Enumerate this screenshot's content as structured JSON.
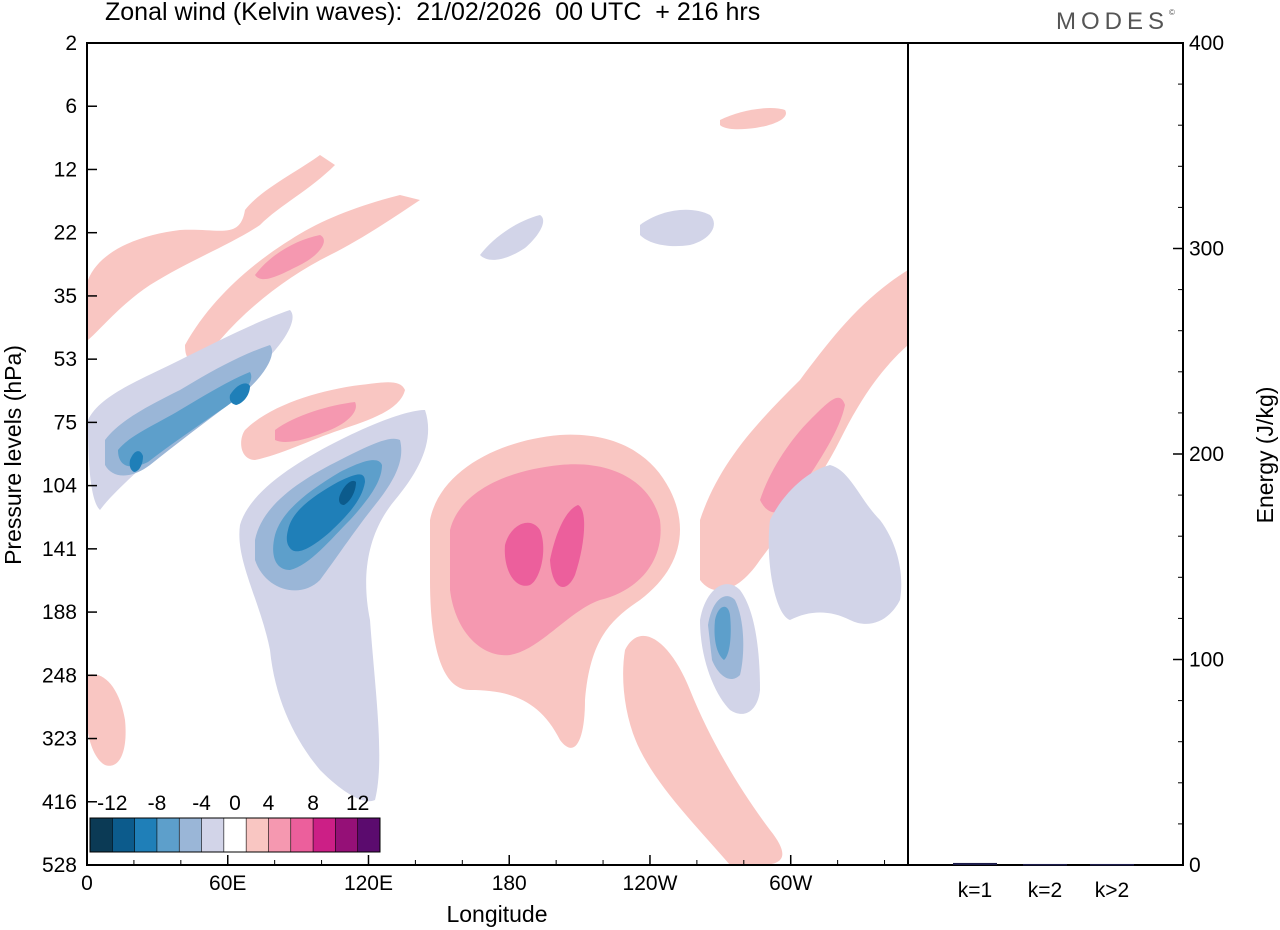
{
  "title": "Zonal wind (Kelvin waves):  21/02/2026  00 UTC  + 216 hrs",
  "brand": "MODES",
  "brand_mark": "©",
  "chart_data": [
    {
      "type": "heatmap",
      "title": "Zonal wind (Kelvin waves):  21/02/2026  00 UTC  + 216 hrs",
      "xlabel": "Longitude",
      "ylabel": "Pressure levels (hPa)",
      "x_ticks": [
        {
          "label": "0",
          "lon": 0
        },
        {
          "label": "60E",
          "lon": 60
        },
        {
          "label": "120E",
          "lon": 120
        },
        {
          "label": "180",
          "lon": 180
        },
        {
          "label": "120W",
          "lon": 240
        },
        {
          "label": "60W",
          "lon": 300
        }
      ],
      "x_range": [
        0,
        350
      ],
      "y_ticks": [
        "2",
        "6",
        "12",
        "22",
        "35",
        "53",
        "75",
        "104",
        "141",
        "188",
        "248",
        "323",
        "416",
        "528"
      ],
      "y_scale": "model levels (top 2 hPa, bottom 528 hPa)",
      "colorbar": {
        "labels": [
          "-12",
          "-8",
          "-4",
          "0",
          "4",
          "8",
          "12"
        ],
        "bounds": [
          -14,
          -12,
          -10,
          -8,
          -6,
          -4,
          -2,
          2,
          4,
          6,
          8,
          10,
          12,
          14
        ],
        "colors": [
          "#0b3a55",
          "#0c5b8c",
          "#1f7fb8",
          "#5d9fcb",
          "#9ab6d7",
          "#d2d4e8",
          "#ffffff",
          "#f9c6c2",
          "#f598b0",
          "#ec5f9c",
          "#cc1f86",
          "#951077",
          "#5b0b6e"
        ]
      },
      "features": [
        {
          "sign": "negative",
          "peak": -13,
          "lon": [
            45,
            125
          ],
          "level": "104-141 hPa"
        },
        {
          "sign": "negative",
          "peak": -11,
          "lon": [
            10,
            75
          ],
          "level": "53-104 hPa"
        },
        {
          "sign": "negative",
          "peak": -8,
          "lon": [
            275,
            290
          ],
          "level": "141-248 hPa"
        },
        {
          "sign": "positive",
          "peak": 9,
          "lon": [
            150,
            245
          ],
          "level": "104-248 hPa"
        },
        {
          "sign": "positive",
          "peak": 7,
          "lon": [
            60,
            125
          ],
          "level": "53-104 hPa"
        },
        {
          "sign": "positive",
          "peak": 7,
          "lon": [
            250,
            350
          ],
          "level": "53-248 hPa"
        },
        {
          "sign": "positive",
          "peak": 6,
          "lon": [
            35,
            135
          ],
          "level": "12-53 hPa"
        }
      ]
    },
    {
      "type": "bar",
      "categories": [
        "k=1",
        "k=2",
        "k>2"
      ],
      "values": [
        1,
        0.5,
        0.5
      ],
      "ylabel": "Energy (J/kg)",
      "ylim": [
        0,
        400
      ],
      "y_ticks": [
        0,
        100,
        200,
        300,
        400
      ]
    }
  ]
}
